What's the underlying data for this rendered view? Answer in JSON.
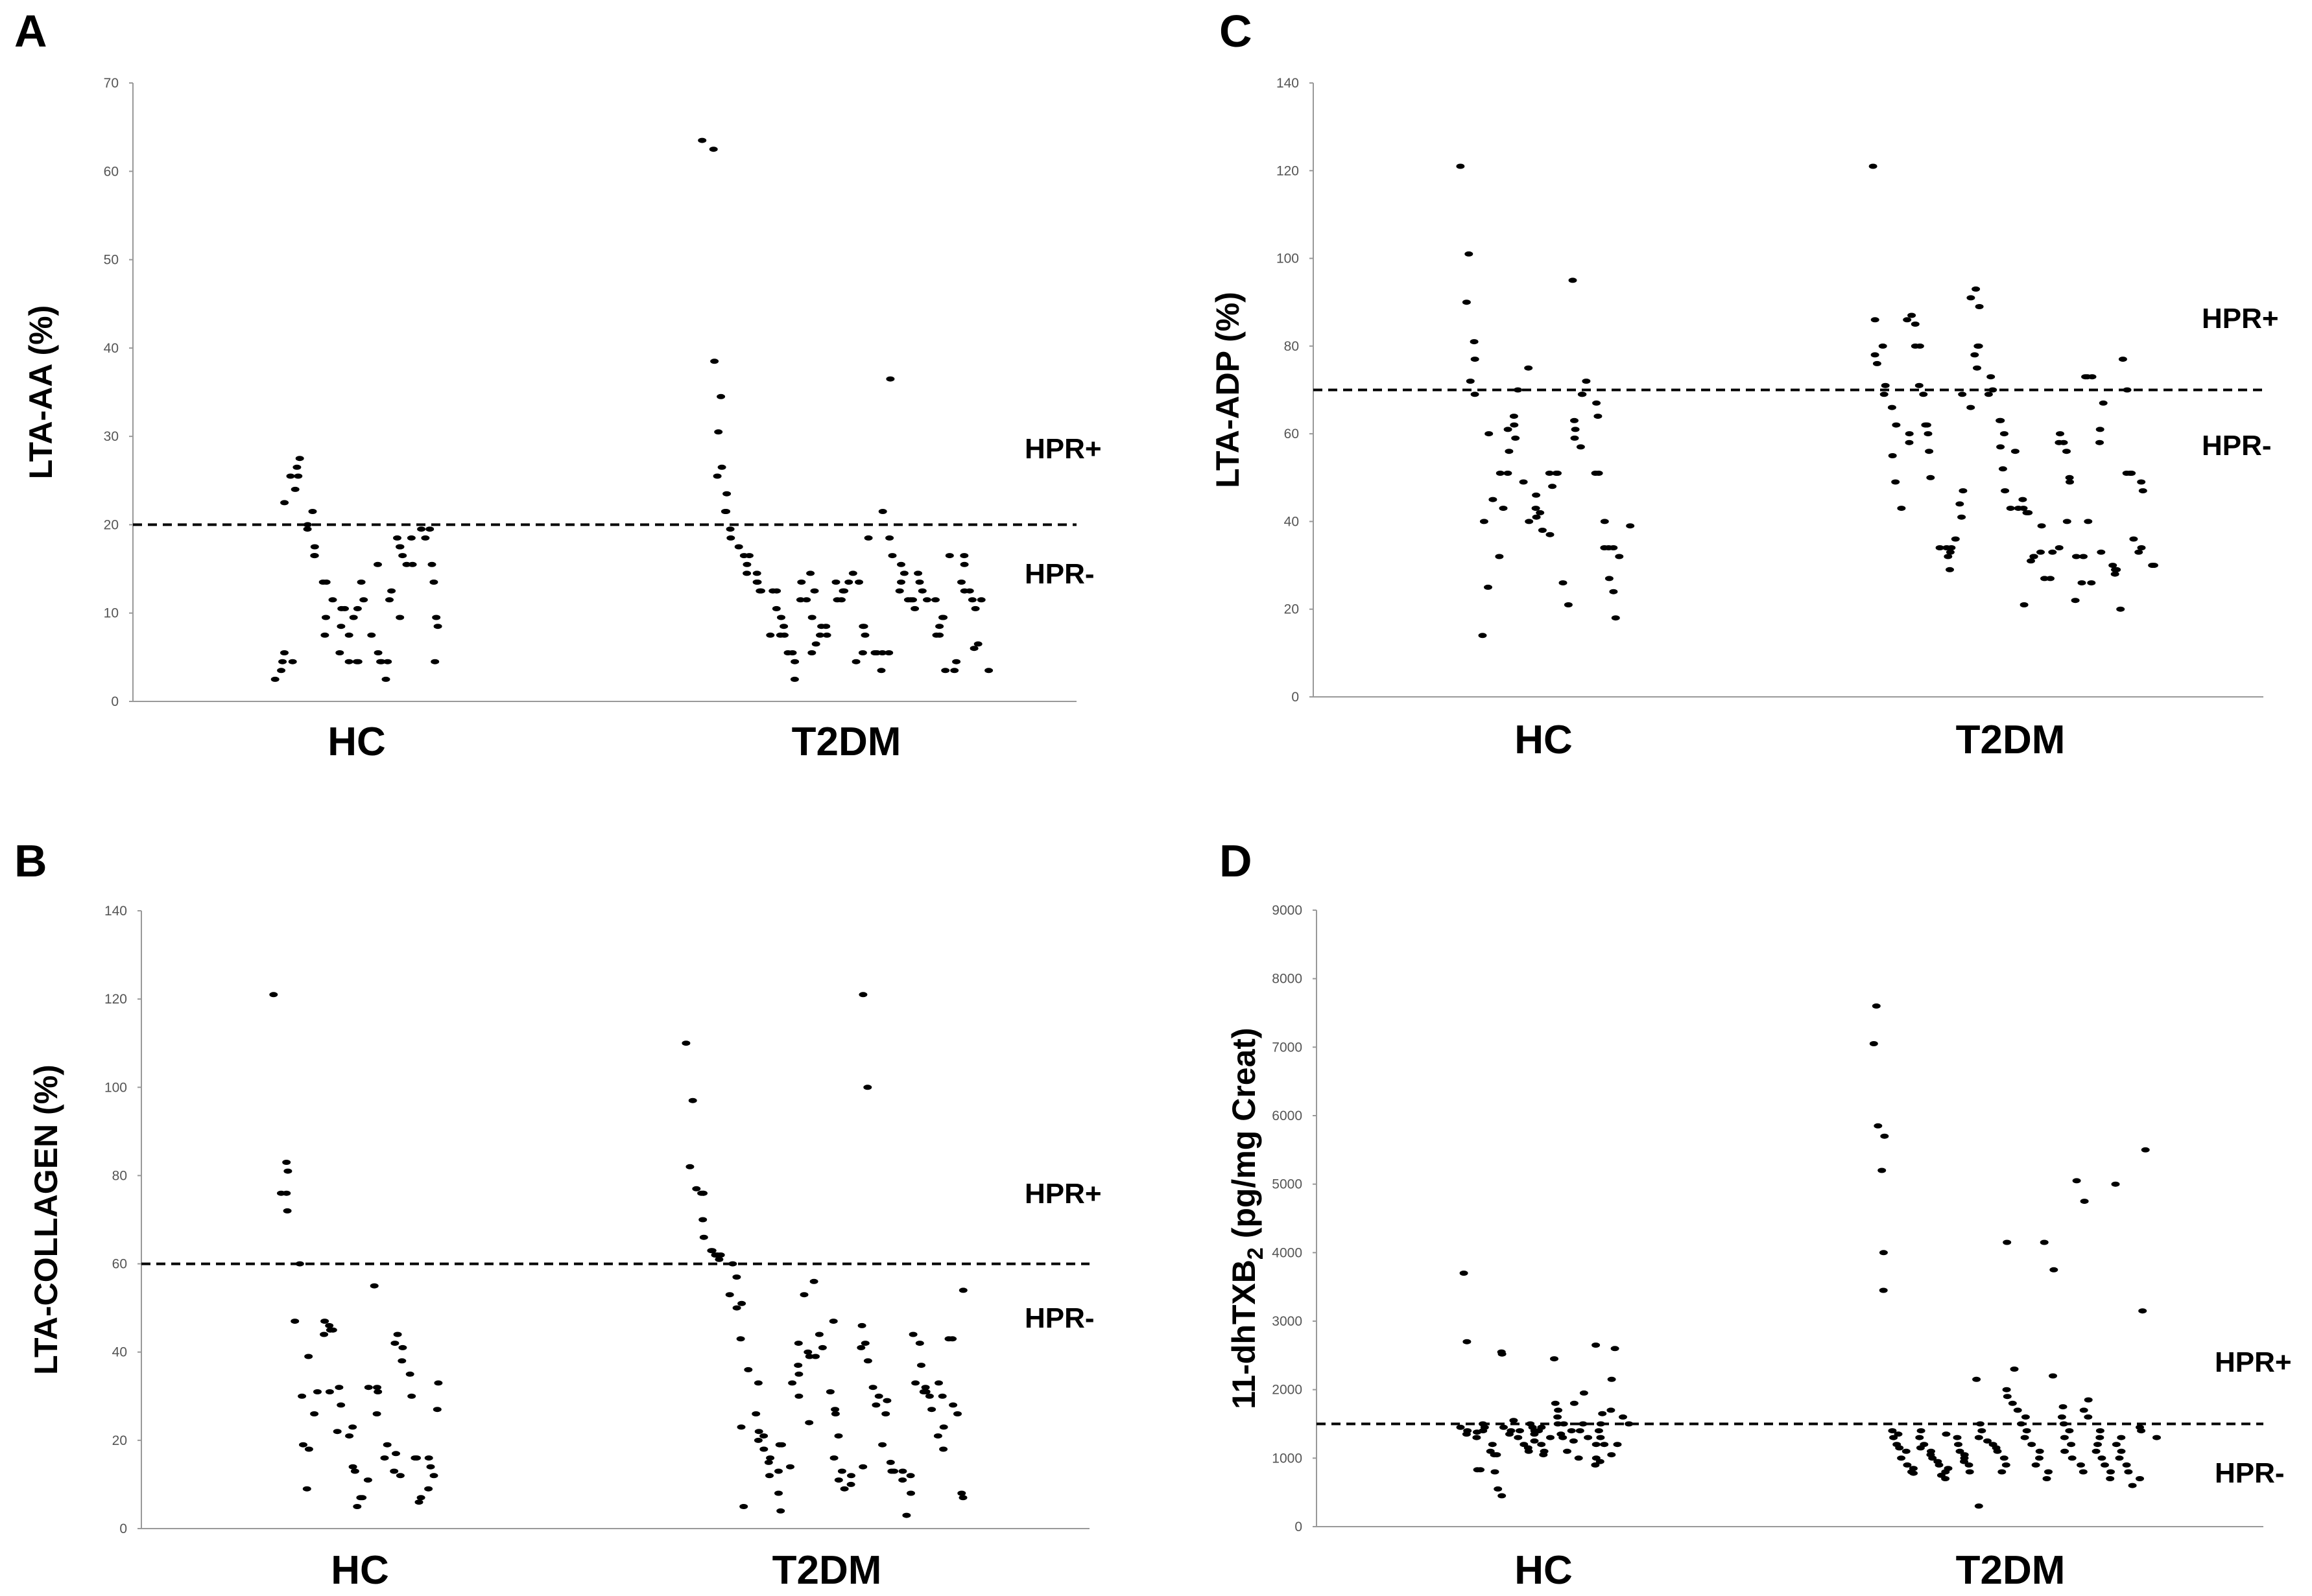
{
  "chart_data": [
    {
      "type": "scatter",
      "panel": "A",
      "ylabel": "LTA-AA (%)",
      "ylim": [
        0,
        70
      ],
      "yticks": [
        0,
        10,
        20,
        30,
        40,
        50,
        60,
        70
      ],
      "categories": [
        "HC",
        "T2DM"
      ],
      "cutoff": 20,
      "labels": {
        "above": "HPR+",
        "below": "HPR-"
      },
      "series": [
        {
          "name": "HC",
          "values": [
            3.5,
            5.5,
            2.5,
            4.5,
            4.5,
            22.5,
            25.5,
            24,
            27.5,
            26.5,
            25.5,
            21.5,
            20,
            19.5,
            17.5,
            16.5,
            16.5,
            13.5,
            13.5,
            9.5,
            7.5,
            5.5,
            11.5,
            10.5,
            10.5,
            8.5,
            7.5,
            4.5,
            4.5,
            4.5,
            9.5,
            10.5,
            11.5,
            13.5,
            15.5,
            7.5,
            5.5,
            4.5,
            4.5,
            4.5,
            2.5,
            11.5,
            12.5,
            9.5,
            18.5,
            17.5,
            17.5,
            16.5,
            15.5,
            15.5,
            18.5,
            19.5,
            18.5,
            19.5,
            15.5,
            13.5,
            4.5,
            9.5,
            8.5
          ]
        },
        {
          "name": "T2DM",
          "values": [
            63.5,
            62.5,
            38.5,
            34.5,
            30.5,
            26.5,
            25.5,
            23.5,
            21.5,
            21.5,
            19.5,
            18.5,
            17.5,
            16.5,
            16.5,
            15.5,
            14.5,
            14.5,
            13.5,
            13.5,
            12.5,
            12.5,
            12.5,
            12.5,
            10.5,
            7.5,
            9.5,
            8.5,
            7.5,
            7.5,
            5.5,
            5.5,
            2.5,
            4.5,
            11.5,
            13.5,
            14.5,
            12.5,
            11.5,
            9.5,
            5.5,
            6.5,
            7.5,
            7.5,
            8.5,
            8.5,
            11.5,
            12.5,
            13.5,
            13.5,
            12.5,
            11.5,
            14.5,
            13.5,
            5.5,
            4.5,
            7.5,
            8.5,
            8.5,
            18.5,
            5.5,
            5.5,
            5.5,
            3.5,
            5.5,
            36.5,
            21.5,
            18.5,
            16.5,
            15.5,
            14.5,
            13.5,
            12.5,
            11.5,
            11.5,
            11.5,
            10.5,
            13.5,
            14.5,
            12.5,
            11.5,
            11.5,
            7.5,
            7.5,
            9.5,
            9.5,
            8.5,
            3.5,
            3.5,
            4.5,
            16.5,
            16.5,
            15.5,
            13.5,
            12.5,
            12.5,
            11.5,
            10.5,
            6.5,
            6,
            3.5,
            11.5
          ]
        }
      ]
    },
    {
      "type": "scatter",
      "panel": "B",
      "ylabel": "LTA-COLLAGEN (%)",
      "ylim": [
        0,
        140
      ],
      "yticks": [
        0,
        20,
        40,
        60,
        80,
        100,
        120,
        140
      ],
      "categories": [
        "HC",
        "T2DM"
      ],
      "cutoff": 60,
      "labels": {
        "above": "HPR+",
        "below": "HPR-"
      },
      "series": [
        {
          "name": "HC",
          "values": [
            121,
            83,
            81,
            76,
            76,
            72,
            60,
            47,
            30,
            9,
            19,
            18,
            39,
            31,
            26,
            47,
            46,
            44,
            45,
            45,
            31,
            32,
            28,
            22,
            21,
            23,
            14,
            13,
            5,
            11,
            7,
            7,
            55,
            32,
            32,
            31,
            26,
            19,
            16,
            17,
            13,
            12,
            44,
            42,
            41,
            38,
            35,
            30,
            16,
            16,
            6,
            9,
            7,
            14,
            12,
            16,
            33,
            27
          ]
        },
        {
          "name": "T2DM",
          "values": [
            110,
            97,
            82,
            77,
            76,
            76,
            76,
            70,
            66,
            63,
            63,
            62,
            62,
            62,
            61,
            60,
            57,
            53,
            51,
            50,
            43,
            36,
            23,
            5,
            33,
            26,
            22,
            21,
            20,
            18,
            16,
            15,
            13,
            12,
            8,
            4,
            19,
            19,
            14,
            30,
            33,
            35,
            37,
            40,
            42,
            56,
            53,
            24,
            39,
            39,
            41,
            44,
            47,
            31,
            27,
            26,
            21,
            16,
            13,
            11,
            10,
            9,
            12,
            14,
            121,
            100,
            46,
            41,
            42,
            38,
            32,
            30,
            29,
            28,
            26,
            19,
            15,
            13,
            11,
            13,
            13,
            8,
            3,
            12,
            44,
            42,
            37,
            33,
            32,
            31,
            31,
            30,
            27,
            23,
            21,
            18,
            33,
            30,
            28,
            26,
            43,
            43,
            54,
            7,
            8
          ]
        }
      ]
    },
    {
      "type": "scatter",
      "panel": "C",
      "ylabel": "LTA-ADP (%)",
      "ylim": [
        0,
        140
      ],
      "yticks": [
        0,
        20,
        40,
        60,
        80,
        100,
        120,
        140
      ],
      "categories": [
        "HC",
        "T2DM"
      ],
      "cutoff": 70,
      "labels": {
        "above": "HPR+",
        "below": "HPR-"
      },
      "series": [
        {
          "name": "HC",
          "values": [
            121,
            101,
            90,
            81,
            77,
            72,
            69,
            60,
            40,
            14,
            25,
            32,
            43,
            45,
            51,
            51,
            56,
            59,
            61,
            62,
            64,
            70,
            75,
            49,
            46,
            40,
            43,
            42,
            41,
            38,
            37,
            51,
            51,
            51,
            48,
            26,
            21,
            95,
            63,
            59,
            57,
            61,
            69,
            69,
            72,
            67,
            64,
            51,
            51,
            40,
            34,
            34,
            34,
            27,
            24,
            18,
            32,
            39
          ]
        },
        {
          "name": "T2DM",
          "values": [
            121,
            86,
            80,
            78,
            76,
            69,
            66,
            62,
            71,
            43,
            49,
            55,
            58,
            60,
            87,
            86,
            85,
            80,
            80,
            71,
            69,
            62,
            62,
            60,
            56,
            50,
            34,
            34,
            29,
            33,
            36,
            32,
            34,
            41,
            44,
            47,
            66,
            69,
            75,
            78,
            93,
            91,
            89,
            80,
            80,
            73,
            69,
            70,
            63,
            63,
            60,
            57,
            52,
            47,
            43,
            43,
            56,
            45,
            43,
            42,
            42,
            21,
            31,
            32,
            33,
            32,
            27,
            27,
            39,
            33,
            34,
            60,
            58,
            58,
            56,
            50,
            49,
            40,
            32,
            32,
            26,
            22,
            26,
            40,
            73,
            73,
            73,
            67,
            61,
            58,
            33,
            30,
            29,
            29,
            28,
            20,
            77,
            70,
            51,
            51,
            51,
            49,
            47,
            36,
            34,
            33,
            30,
            30
          ]
        }
      ]
    },
    {
      "type": "scatter",
      "panel": "D",
      "ylabel": "11-dhTXB2 (pg/mg Creat)",
      "ylabel_main": "11-dhTXB",
      "ylabel_sub": "2",
      "ylabel_tail": " (pg/mg Creat)",
      "ylim": [
        0,
        9000
      ],
      "yticks": [
        0,
        1000,
        2000,
        3000,
        4000,
        5000,
        6000,
        7000,
        8000,
        9000
      ],
      "categories": [
        "HC",
        "T2DM"
      ],
      "cutoff": 1500,
      "labels": {
        "above": "HPR+",
        "below": "HPR-"
      },
      "series": [
        {
          "name": "HC",
          "values": [
            3700,
            2700,
            1450,
            1400,
            1380,
            1350,
            1300,
            830,
            830,
            1400,
            1500,
            1450,
            1200,
            1100,
            1050,
            1050,
            800,
            550,
            450,
            2520,
            2550,
            1550,
            1450,
            1400,
            1350,
            1400,
            1300,
            1200,
            1150,
            1100,
            1250,
            1350,
            1400,
            1450,
            1500,
            1450,
            1400,
            1300,
            1200,
            1100,
            1050,
            2450,
            1800,
            1700,
            1600,
            1500,
            1500,
            1400,
            1350,
            1300,
            1250,
            1100,
            1000,
            1950,
            1800,
            1500,
            1400,
            1300,
            1200,
            1000,
            950,
            900,
            2650,
            1650,
            1500,
            1400,
            1300,
            1200,
            1050,
            2600,
            2150,
            1700,
            1600,
            1500,
            1200
          ]
        },
        {
          "name": "T2DM",
          "values": [
            7600,
            7050,
            5850,
            5700,
            5200,
            4000,
            3450,
            1400,
            1350,
            1300,
            1200,
            1150,
            1100,
            1000,
            900,
            850,
            800,
            780,
            1400,
            1300,
            1200,
            1150,
            1100,
            1050,
            1000,
            950,
            900,
            850,
            800,
            750,
            700,
            1350,
            1300,
            1200,
            1100,
            1050,
            1000,
            950,
            900,
            800,
            300,
            2150,
            1500,
            1400,
            1300,
            1250,
            1200,
            1150,
            1100,
            1000,
            900,
            800,
            4150,
            2300,
            2000,
            1900,
            1800,
            1700,
            1600,
            1500,
            1400,
            1300,
            1200,
            1100,
            1000,
            900,
            800,
            700,
            3750,
            4150,
            2200,
            1750,
            1600,
            1500,
            1400,
            1300,
            1200,
            1100,
            1000,
            900,
            800,
            5050,
            4750,
            1850,
            1700,
            1600,
            1400,
            1300,
            1200,
            1100,
            1000,
            900,
            800,
            700,
            5000,
            1300,
            1200,
            1100,
            1000,
            900,
            800,
            700,
            600,
            3150,
            5500,
            1450,
            1400,
            1300
          ]
        }
      ]
    }
  ]
}
